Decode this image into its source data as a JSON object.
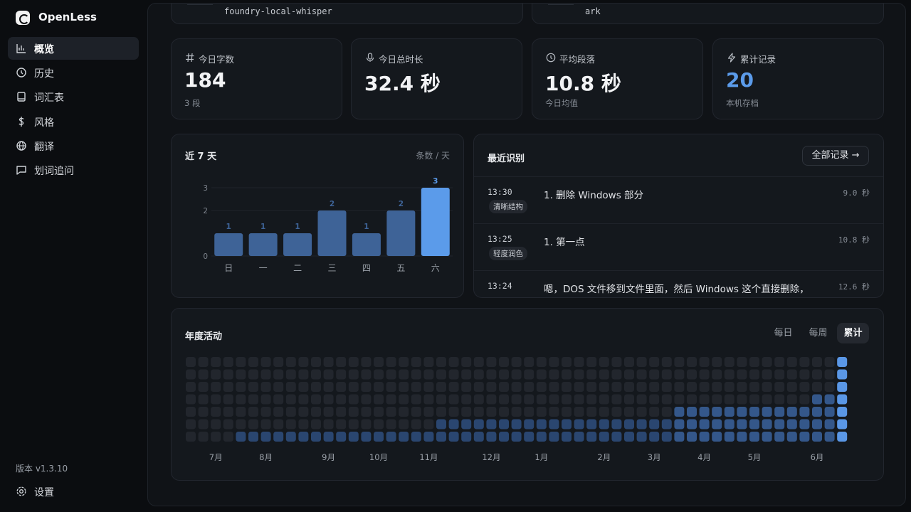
{
  "app": {
    "name": "OpenLess"
  },
  "nav": [
    {
      "label": "概览",
      "active": true
    },
    {
      "label": "历史",
      "active": false
    },
    {
      "label": "词汇表",
      "active": false
    },
    {
      "label": "风格",
      "active": false
    },
    {
      "label": "翻译",
      "active": false
    },
    {
      "label": "划词追问",
      "active": false
    }
  ],
  "version": "版本 v1.3.10",
  "settings": "设置",
  "engines": [
    "foundry-local-whisper",
    "ark"
  ],
  "stats": [
    {
      "label": "今日字数",
      "value": "184",
      "sub": "3 段"
    },
    {
      "label": "今日总时长",
      "value": "32.4 秒"
    },
    {
      "label": "平均段落",
      "value": "10.8 秒",
      "sub": "今日均值"
    },
    {
      "label": "累计记录",
      "value": "20",
      "sub": "本机存档"
    }
  ],
  "recent": {
    "title": "最近识别",
    "button": "全部记录 →",
    "items": [
      {
        "time": "13:30",
        "tag": "清晰结构",
        "text": "1. 删除 Windows 部分",
        "duration": "9.0 秒"
      },
      {
        "time": "13:25",
        "tag": "轻度润色",
        "text": "1. 第一点",
        "duration": "10.8 秒"
      },
      {
        "time": "13:24",
        "text": "嗯，DOS 文件移到文件里面，然后 Windows 这个直接删除，",
        "duration": "12.6 秒"
      }
    ]
  },
  "activity_tabs": [
    {
      "label": "每日",
      "active": false
    },
    {
      "label": "每周",
      "active": false
    },
    {
      "label": "累计",
      "active": true
    }
  ],
  "chart_data": [
    {
      "type": "bar",
      "title": "近 7 天",
      "unit_label": "条数 / 天",
      "categories": [
        "日",
        "一",
        "二",
        "三",
        "四",
        "五",
        "六"
      ],
      "values": [
        1,
        1,
        1,
        2,
        1,
        2,
        3
      ],
      "colors": [
        "#3e6397",
        "#3e6397",
        "#3e6397",
        "#3e6397",
        "#3e6397",
        "#3e6397",
        "#5b9bea"
      ],
      "ylim": [
        0,
        3
      ],
      "yticks": [
        0,
        2,
        3
      ],
      "grid": true
    },
    {
      "type": "heatmap",
      "title": "年度活动",
      "level_colors": [
        "#22262d",
        "#2a4670",
        "#34578a",
        "#5a97e6"
      ],
      "categories": [
        null,
        null,
        "7月",
        null,
        null,
        null,
        "8月",
        null,
        null,
        null,
        null,
        "9月",
        null,
        null,
        null,
        "10月",
        null,
        null,
        null,
        "11月",
        null,
        null,
        null,
        null,
        "12月",
        null,
        null,
        null,
        "1月",
        null,
        null,
        null,
        null,
        "2月",
        null,
        null,
        null,
        "3月",
        null,
        null,
        null,
        "4月",
        null,
        null,
        null,
        "5月",
        null,
        null,
        null,
        null,
        "6月",
        null,
        null
      ],
      "values": [
        [
          0,
          0,
          0,
          0,
          0,
          0,
          0,
          0,
          0,
          0,
          0,
          0,
          0,
          0,
          0,
          0,
          0,
          0,
          0,
          0,
          0,
          0,
          0,
          0,
          0,
          0,
          0,
          0,
          0,
          0,
          0,
          0,
          0,
          0,
          0,
          0,
          0,
          0,
          0,
          0,
          0,
          0,
          0,
          0,
          0,
          0,
          0,
          0,
          0,
          0,
          0,
          0,
          3
        ],
        [
          0,
          0,
          0,
          0,
          0,
          0,
          0,
          0,
          0,
          0,
          0,
          0,
          0,
          0,
          0,
          0,
          0,
          0,
          0,
          0,
          0,
          0,
          0,
          0,
          0,
          0,
          0,
          0,
          0,
          0,
          0,
          0,
          0,
          0,
          0,
          0,
          0,
          0,
          0,
          0,
          0,
          0,
          0,
          0,
          0,
          0,
          0,
          0,
          0,
          0,
          0,
          0,
          3
        ],
        [
          0,
          0,
          0,
          0,
          0,
          0,
          0,
          0,
          0,
          0,
          0,
          0,
          0,
          0,
          0,
          0,
          0,
          0,
          0,
          0,
          0,
          0,
          0,
          0,
          0,
          0,
          0,
          0,
          0,
          0,
          0,
          0,
          0,
          0,
          0,
          0,
          0,
          0,
          0,
          0,
          0,
          0,
          0,
          0,
          0,
          0,
          0,
          0,
          0,
          0,
          0,
          0,
          3
        ],
        [
          0,
          0,
          0,
          0,
          0,
          0,
          0,
          0,
          0,
          0,
          0,
          0,
          0,
          0,
          0,
          0,
          0,
          0,
          0,
          0,
          0,
          0,
          0,
          0,
          0,
          0,
          0,
          0,
          0,
          0,
          0,
          0,
          0,
          0,
          0,
          0,
          0,
          0,
          0,
          0,
          0,
          0,
          0,
          0,
          0,
          0,
          0,
          0,
          0,
          0,
          2,
          2,
          3
        ],
        [
          0,
          0,
          0,
          0,
          0,
          0,
          0,
          0,
          0,
          0,
          0,
          0,
          0,
          0,
          0,
          0,
          0,
          0,
          0,
          0,
          0,
          0,
          0,
          0,
          0,
          0,
          0,
          0,
          0,
          0,
          0,
          0,
          0,
          0,
          0,
          0,
          0,
          0,
          0,
          2,
          2,
          2,
          2,
          2,
          2,
          2,
          2,
          2,
          2,
          2,
          2,
          2,
          3
        ],
        [
          0,
          0,
          0,
          0,
          0,
          0,
          0,
          0,
          0,
          0,
          0,
          0,
          0,
          0,
          0,
          0,
          0,
          0,
          0,
          0,
          1,
          1,
          1,
          1,
          1,
          1,
          1,
          1,
          1,
          1,
          1,
          1,
          1,
          1,
          1,
          1,
          1,
          1,
          1,
          2,
          2,
          2,
          2,
          2,
          2,
          2,
          2,
          2,
          2,
          2,
          2,
          2,
          3
        ],
        [
          0,
          0,
          0,
          0,
          1,
          1,
          1,
          1,
          1,
          1,
          1,
          1,
          1,
          1,
          1,
          1,
          1,
          1,
          1,
          1,
          1,
          1,
          1,
          1,
          1,
          1,
          1,
          1,
          1,
          1,
          1,
          1,
          1,
          1,
          1,
          1,
          1,
          1,
          1,
          2,
          2,
          2,
          2,
          2,
          2,
          2,
          2,
          2,
          2,
          2,
          2,
          2,
          3
        ]
      ]
    }
  ]
}
